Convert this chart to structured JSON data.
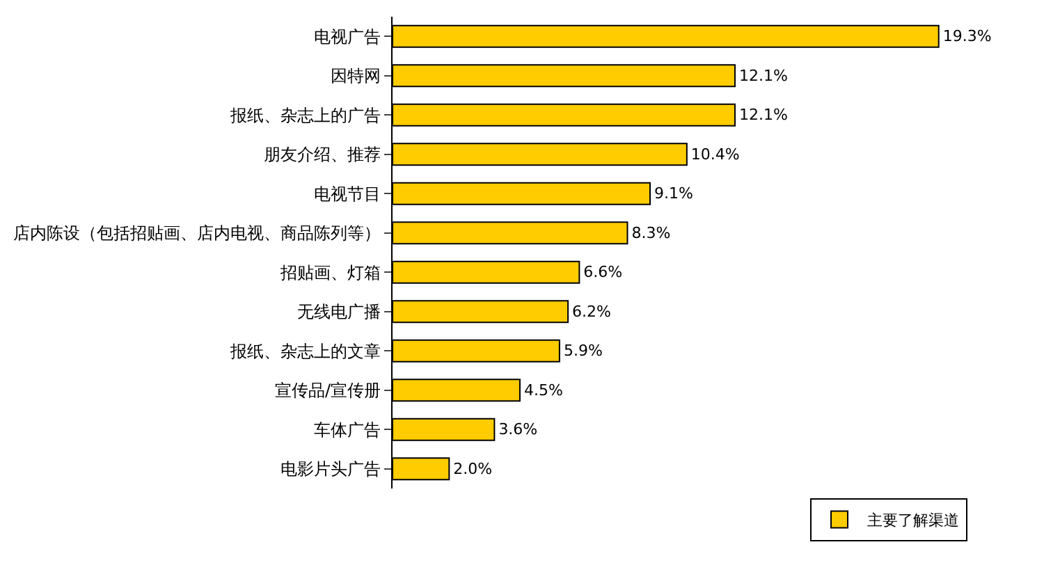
{
  "chart_data": {
    "type": "bar",
    "orientation": "horizontal",
    "tick_labels": "y",
    "legend": "bottom right",
    "categories": [
      "电视广告",
      "因特网",
      "报纸、杂志上的广告",
      "朋友介绍、推荐",
      "电视节目",
      "店内陈设（包括招贴画、店内电视、商品陈列等）",
      "招贴画、灯箱",
      "无线电广播",
      "报纸、杂志上的文章",
      "宣传品/宣传册",
      "车体广告",
      "电影片头广告"
    ],
    "series": [
      {
        "name": "主要了解渠道",
        "color": "#ffcc00",
        "values": [
          19.3,
          12.1,
          12.1,
          10.4,
          9.1,
          8.3,
          6.6,
          6.2,
          5.9,
          4.5,
          3.6,
          2.0
        ],
        "value_labels": [
          "19.3%",
          "12.1%",
          "12.1%",
          "10.4%",
          "9.1%",
          "8.3%",
          "6.6%",
          "6.2%",
          "5.9%",
          "4.5%",
          "3.6%",
          "2.0%"
        ]
      }
    ]
  }
}
